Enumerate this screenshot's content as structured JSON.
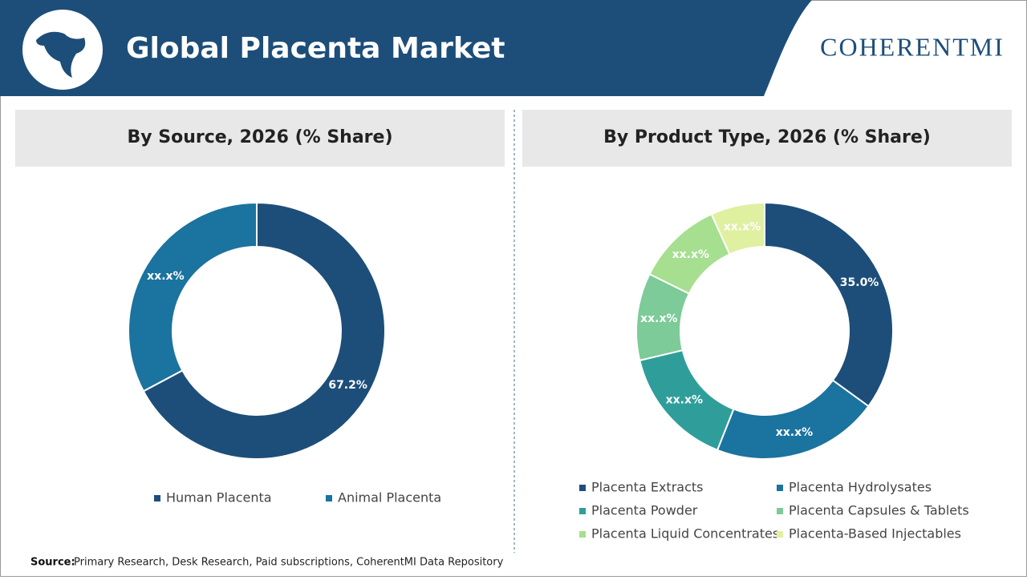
{
  "header": {
    "title": "Global Placenta Market",
    "logo": "COHERENTMI"
  },
  "chart_data": [
    {
      "type": "donut",
      "title": "By Source, 2026 (% Share)",
      "categories": [
        "Human Placenta",
        "Animal Placenta"
      ],
      "values": [
        67.2,
        32.8
      ],
      "value_labels": [
        "67.2%",
        "xx.x%"
      ],
      "colors": [
        "#1d4e79",
        "#1b739f"
      ]
    },
    {
      "type": "donut",
      "title": "By Product Type, 2026 (% Share)",
      "categories": [
        "Placenta Extracts",
        "Placenta Hydrolysates",
        "Placenta Powder",
        "Placenta Capsules & Tablets",
        "Placenta Liquid Concentrates",
        "Placenta-Based Injectables"
      ],
      "values": [
        35.0,
        21.0,
        15.3,
        11.0,
        10.9,
        6.8
      ],
      "value_labels": [
        "35.0%",
        "xx.x%",
        "xx.x%",
        "xx.x%",
        "xx.x%",
        "xx.x%"
      ],
      "colors": [
        "#1d4e79",
        "#1b739f",
        "#2f9e9b",
        "#7ccb98",
        "#a6df8f",
        "#dff0a0"
      ]
    }
  ],
  "source": {
    "label": "Source:",
    "text": "Primary Research, Desk Research, Paid subscriptions, CoherentMI Data Repository"
  }
}
